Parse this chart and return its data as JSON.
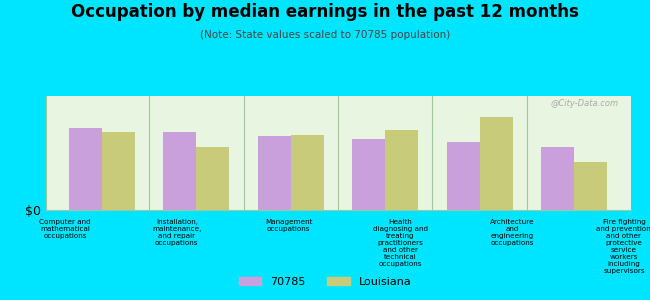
{
  "title": "Occupation by median earnings in the past 12 months",
  "subtitle": "(Note: State values scaled to 70785 population)",
  "categories": [
    "Computer and\nmathematical\noccupations",
    "Installation,\nmaintenance,\nand repair\noccupations",
    "Management\noccupations",
    "Health\ndiagnosing and\ntreating\npractitioners\nand other\ntechnical\noccupations",
    "Architecture\nand\nengineering\noccupations",
    "Fire fighting\nand prevention,\nand other\nprotective\nservice\nworkers\nincluding\nsupervisors"
  ],
  "values_70785": [
    0.72,
    0.68,
    0.65,
    0.62,
    0.6,
    0.55
  ],
  "values_louisiana": [
    0.68,
    0.55,
    0.66,
    0.7,
    0.82,
    0.42
  ],
  "color_70785": "#c9a0dc",
  "color_louisiana": "#c8cc7a",
  "background_chart": "#e8f5e0",
  "background_main": "#00e5ff",
  "ylabel": "$0",
  "legend_70785": "70785",
  "legend_louisiana": "Louisiana",
  "watermark": "@City-Data.com"
}
